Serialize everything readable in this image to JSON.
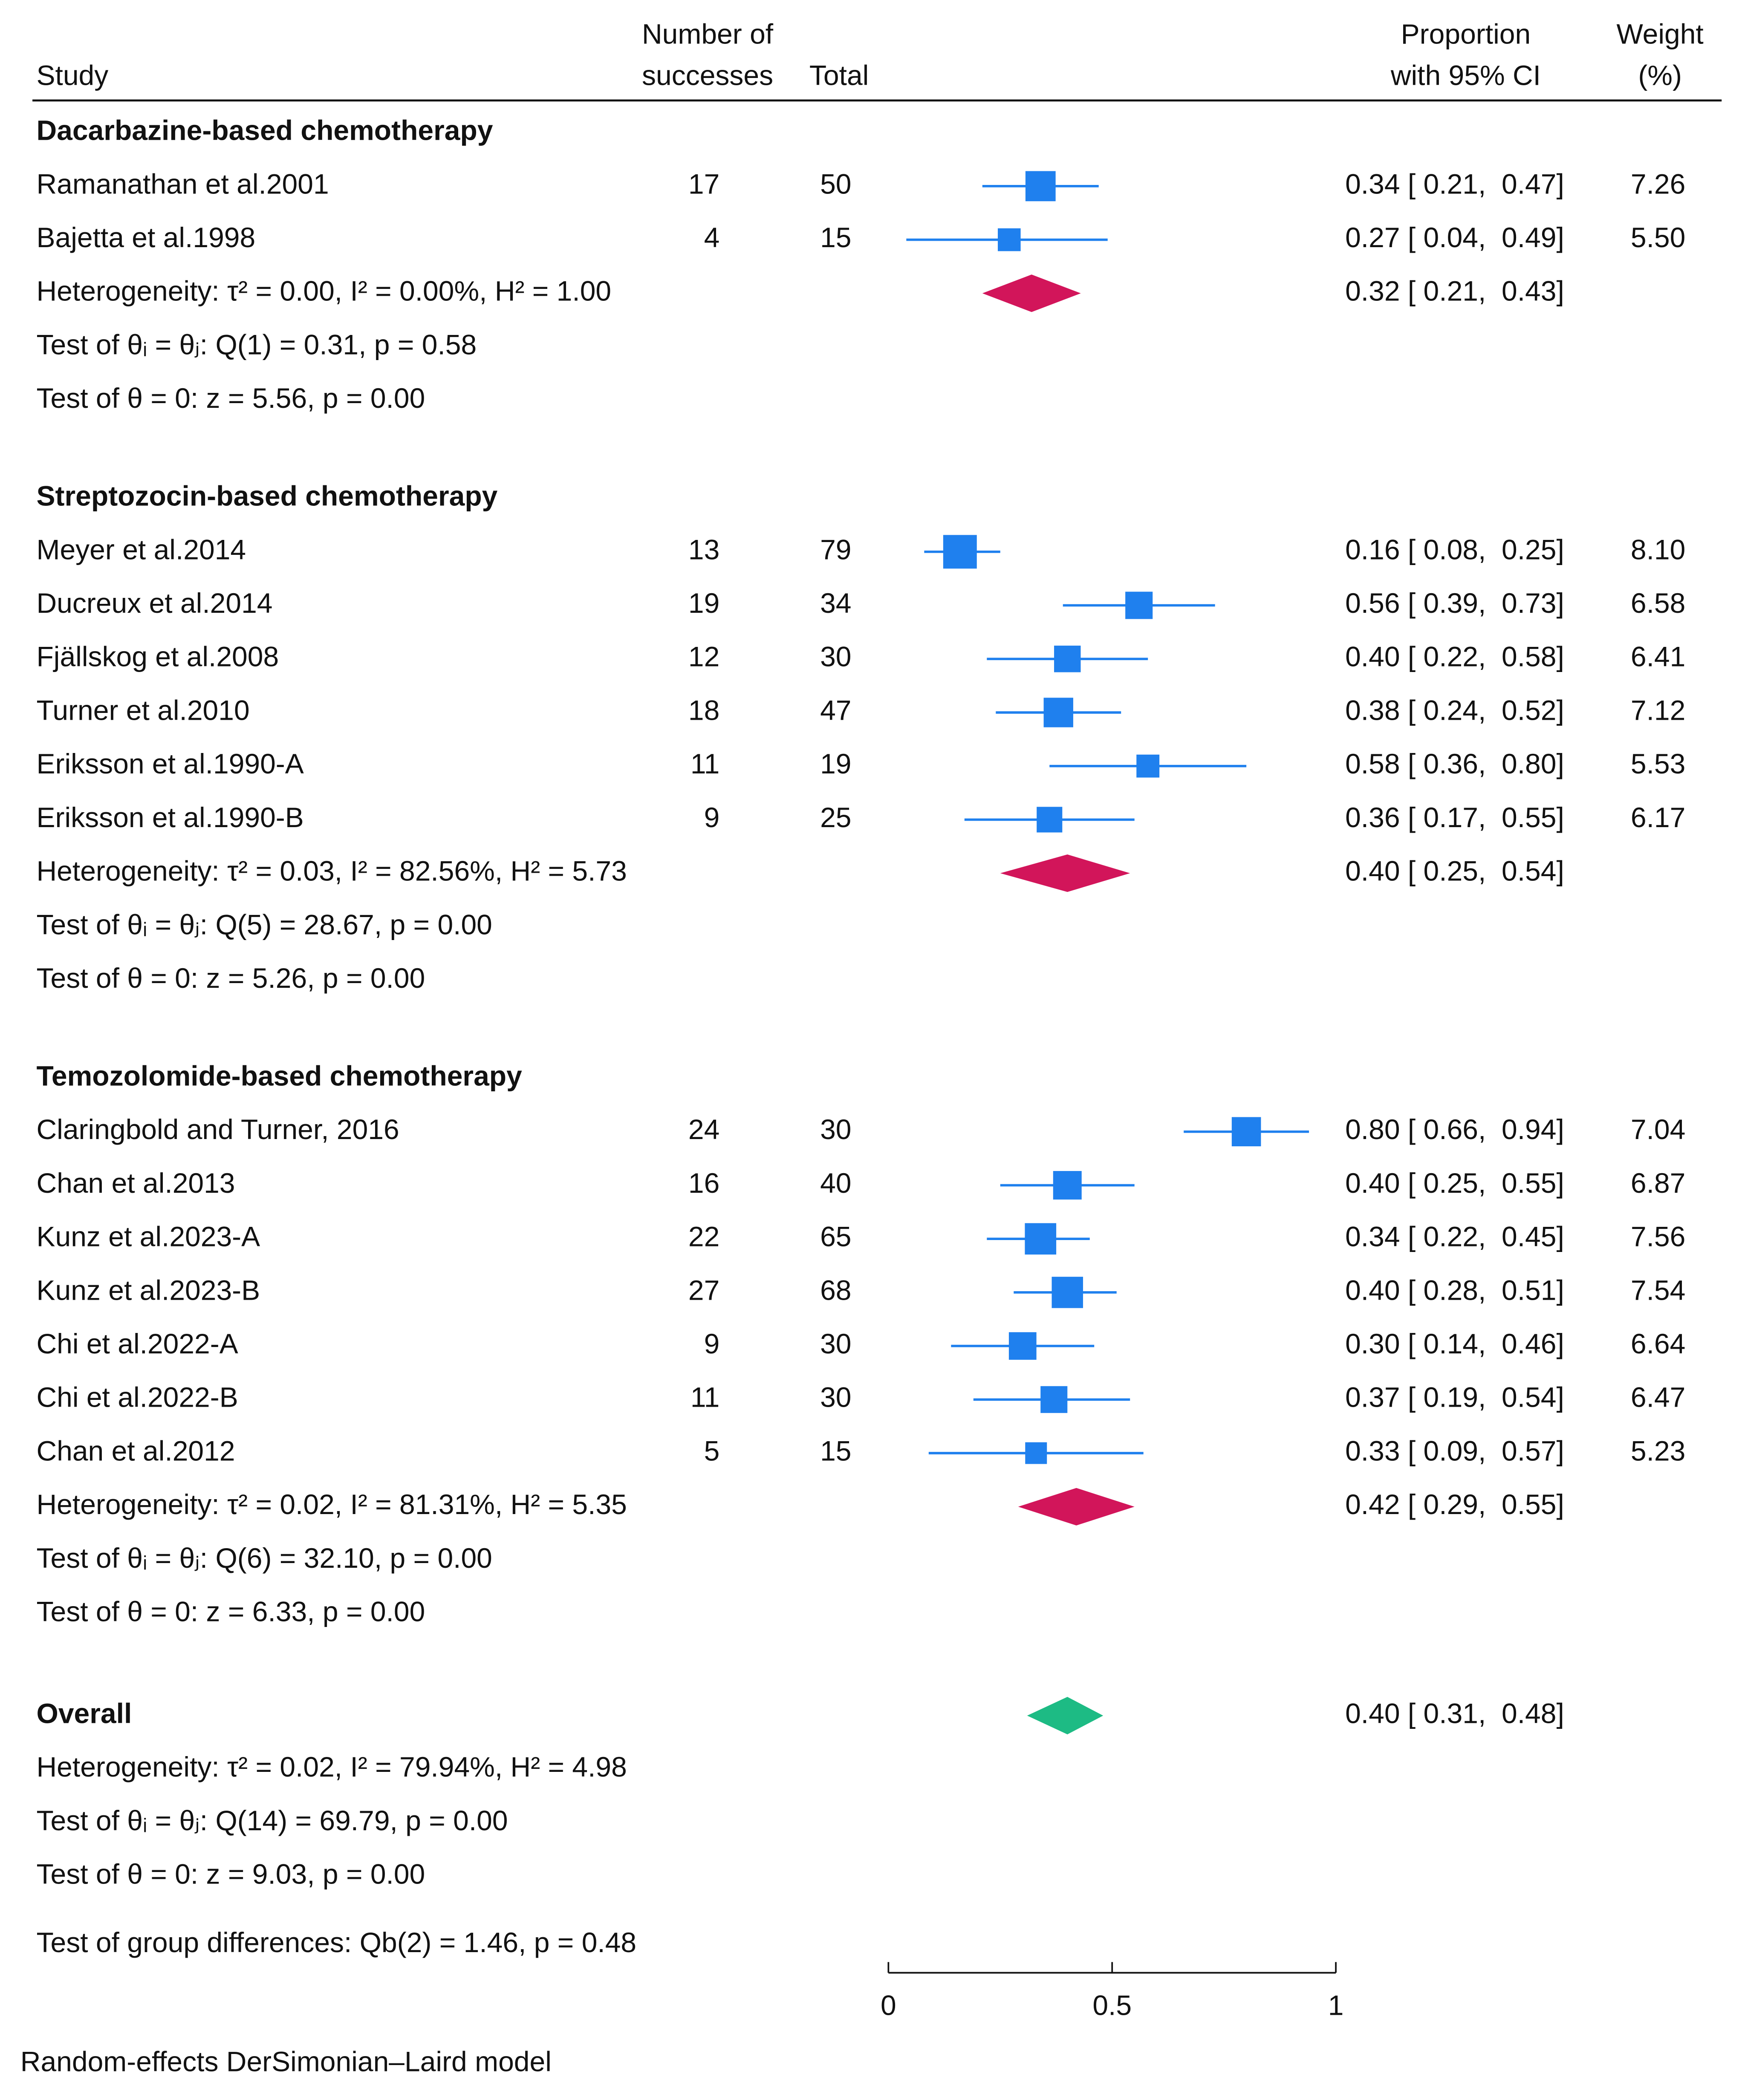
{
  "chart_data": {
    "type": "forest",
    "headers": {
      "study": "Study",
      "successes": [
        "Number of",
        "successes"
      ],
      "total": "Total",
      "ci": [
        "Proportion",
        "with 95% CI"
      ],
      "weight": [
        "Weight",
        "(%)"
      ]
    },
    "groups": [
      {
        "title": "Dacarbazine-based chemotherapy",
        "studies": [
          {
            "name": "Ramanathan et al.2001",
            "successes": 17,
            "total": 50,
            "est": 0.34,
            "lo": 0.21,
            "hi": 0.47,
            "ci_label": "0.34 [ 0.21,  0.47]",
            "weight": 7.26,
            "weight_label": "7.26"
          },
          {
            "name": "Bajetta et al.1998",
            "successes": 4,
            "total": 15,
            "est": 0.27,
            "lo": 0.04,
            "hi": 0.49,
            "ci_label": "0.27 [ 0.04,  0.49]",
            "weight": 5.5,
            "weight_label": "5.50"
          }
        ],
        "pooled": {
          "est": 0.32,
          "lo": 0.21,
          "hi": 0.43,
          "ci_label": "0.32 [ 0.21,  0.43]"
        },
        "heterogeneity": "Heterogeneity: τ² = 0.00, I² = 0.00%, H² = 1.00",
        "tests": [
          "Test of θᵢ = θⱼ: Q(1) = 0.31, p = 0.58",
          "Test of θ = 0: z = 5.56, p = 0.00"
        ]
      },
      {
        "title": "Streptozocin-based chemotherapy",
        "studies": [
          {
            "name": "Meyer et al.2014",
            "successes": 13,
            "total": 79,
            "est": 0.16,
            "lo": 0.08,
            "hi": 0.25,
            "ci_label": "0.16 [ 0.08,  0.25]",
            "weight": 8.1,
            "weight_label": "8.10"
          },
          {
            "name": "Ducreux et al.2014",
            "successes": 19,
            "total": 34,
            "est": 0.56,
            "lo": 0.39,
            "hi": 0.73,
            "ci_label": "0.56 [ 0.39,  0.73]",
            "weight": 6.58,
            "weight_label": "6.58"
          },
          {
            "name": "Fjällskog et al.2008",
            "successes": 12,
            "total": 30,
            "est": 0.4,
            "lo": 0.22,
            "hi": 0.58,
            "ci_label": "0.40 [ 0.22,  0.58]",
            "weight": 6.41,
            "weight_label": "6.41"
          },
          {
            "name": "Turner et al.2010",
            "successes": 18,
            "total": 47,
            "est": 0.38,
            "lo": 0.24,
            "hi": 0.52,
            "ci_label": "0.38 [ 0.24,  0.52]",
            "weight": 7.12,
            "weight_label": "7.12"
          },
          {
            "name": "Eriksson et al.1990-A",
            "successes": 11,
            "total": 19,
            "est": 0.58,
            "lo": 0.36,
            "hi": 0.8,
            "ci_label": "0.58 [ 0.36,  0.80]",
            "weight": 5.53,
            "weight_label": "5.53"
          },
          {
            "name": "Eriksson et al.1990-B",
            "successes": 9,
            "total": 25,
            "est": 0.36,
            "lo": 0.17,
            "hi": 0.55,
            "ci_label": "0.36 [ 0.17,  0.55]",
            "weight": 6.17,
            "weight_label": "6.17"
          }
        ],
        "pooled": {
          "est": 0.4,
          "lo": 0.25,
          "hi": 0.54,
          "ci_label": "0.40 [ 0.25,  0.54]"
        },
        "heterogeneity": "Heterogeneity: τ² = 0.03, I² = 82.56%, H² = 5.73",
        "tests": [
          "Test of θᵢ = θⱼ: Q(5) = 28.67, p = 0.00",
          "Test of θ = 0: z = 5.26, p = 0.00"
        ]
      },
      {
        "title": "Temozolomide-based chemotherapy",
        "studies": [
          {
            "name": "Claringbold and Turner, 2016",
            "successes": 24,
            "total": 30,
            "est": 0.8,
            "lo": 0.66,
            "hi": 0.94,
            "ci_label": "0.80 [ 0.66,  0.94]",
            "weight": 7.04,
            "weight_label": "7.04"
          },
          {
            "name": "Chan et al.2013",
            "successes": 16,
            "total": 40,
            "est": 0.4,
            "lo": 0.25,
            "hi": 0.55,
            "ci_label": "0.40 [ 0.25,  0.55]",
            "weight": 6.87,
            "weight_label": "6.87"
          },
          {
            "name": "Kunz et al.2023-A",
            "successes": 22,
            "total": 65,
            "est": 0.34,
            "lo": 0.22,
            "hi": 0.45,
            "ci_label": "0.34 [ 0.22,  0.45]",
            "weight": 7.56,
            "weight_label": "7.56"
          },
          {
            "name": "Kunz et al.2023-B",
            "successes": 27,
            "total": 68,
            "est": 0.4,
            "lo": 0.28,
            "hi": 0.51,
            "ci_label": "0.40 [ 0.28,  0.51]",
            "weight": 7.54,
            "weight_label": "7.54"
          },
          {
            "name": "Chi et al.2022-A",
            "successes": 9,
            "total": 30,
            "est": 0.3,
            "lo": 0.14,
            "hi": 0.46,
            "ci_label": "0.30 [ 0.14,  0.46]",
            "weight": 6.64,
            "weight_label": "6.64"
          },
          {
            "name": "Chi et al.2022-B",
            "successes": 11,
            "total": 30,
            "est": 0.37,
            "lo": 0.19,
            "hi": 0.54,
            "ci_label": "0.37 [ 0.19,  0.54]",
            "weight": 6.47,
            "weight_label": "6.47"
          },
          {
            "name": "Chan et al.2012",
            "successes": 5,
            "total": 15,
            "est": 0.33,
            "lo": 0.09,
            "hi": 0.57,
            "ci_label": "0.33 [ 0.09,  0.57]",
            "weight": 5.23,
            "weight_label": "5.23"
          }
        ],
        "pooled": {
          "est": 0.42,
          "lo": 0.29,
          "hi": 0.55,
          "ci_label": "0.42 [ 0.29,  0.55]"
        },
        "heterogeneity": "Heterogeneity: τ² = 0.02, I² = 81.31%, H² = 5.35",
        "tests": [
          "Test of θᵢ = θⱼ: Q(6) = 32.10, p = 0.00",
          "Test of θ = 0: z = 6.33, p = 0.00"
        ]
      }
    ],
    "overall": {
      "label": "Overall",
      "est": 0.4,
      "lo": 0.31,
      "hi": 0.48,
      "ci_label": "0.40 [ 0.31,  0.48]",
      "heterogeneity": "Heterogeneity: τ² = 0.02, I² = 79.94%, H² = 4.98",
      "tests": [
        "Test of θᵢ = θⱼ: Q(14) = 69.79, p = 0.00",
        "Test of θ = 0: z = 9.03, p = 0.00"
      ]
    },
    "group_test": "Test of group differences: Qb(2) = 1.46, p = 0.48",
    "footnote": "Random-effects DerSimonian–Laird model",
    "xlim": [
      0,
      1
    ],
    "xticks": [
      0,
      0.5,
      1
    ],
    "study_color": "#1f80ee",
    "group_color": "#d2155a",
    "overall_color": "#1dbb84"
  }
}
